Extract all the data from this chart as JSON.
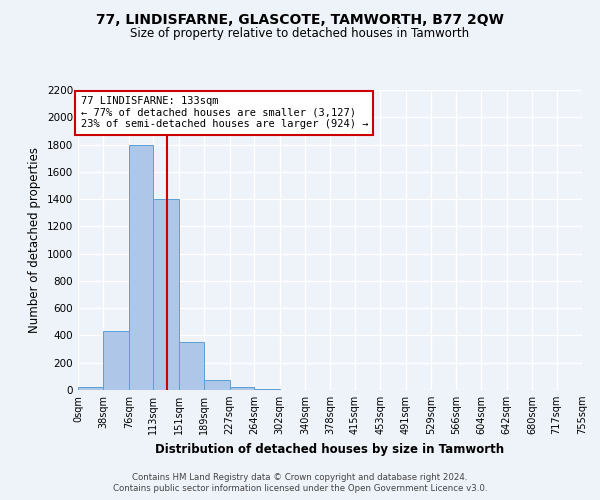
{
  "title": "77, LINDISFARNE, GLASCOTE, TAMWORTH, B77 2QW",
  "subtitle": "Size of property relative to detached houses in Tamworth",
  "xlabel": "Distribution of detached houses by size in Tamworth",
  "ylabel": "Number of detached properties",
  "bar_color": "#aec6e8",
  "bar_edge_color": "#5a9fd4",
  "bin_edges": [
    0,
    38,
    76,
    113,
    151,
    189,
    227,
    264,
    302,
    340,
    378,
    415,
    453,
    491,
    529,
    566,
    604,
    642,
    680,
    717,
    755
  ],
  "bar_heights": [
    20,
    430,
    1800,
    1400,
    350,
    75,
    25,
    5,
    0,
    0,
    0,
    0,
    0,
    0,
    0,
    0,
    0,
    0,
    0,
    0
  ],
  "x_tick_labels": [
    "0sqm",
    "38sqm",
    "76sqm",
    "113sqm",
    "151sqm",
    "189sqm",
    "227sqm",
    "264sqm",
    "302sqm",
    "340sqm",
    "378sqm",
    "415sqm",
    "453sqm",
    "491sqm",
    "529sqm",
    "566sqm",
    "604sqm",
    "642sqm",
    "680sqm",
    "717sqm",
    "755sqm"
  ],
  "ylim": [
    0,
    2200
  ],
  "yticks": [
    0,
    200,
    400,
    600,
    800,
    1000,
    1200,
    1400,
    1600,
    1800,
    2000,
    2200
  ],
  "vline_x": 133,
  "vline_color": "#cc0000",
  "annotation_title": "77 LINDISFARNE: 133sqm",
  "annotation_line1": "← 77% of detached houses are smaller (3,127)",
  "annotation_line2": "23% of semi-detached houses are larger (924) →",
  "annotation_box_color": "#ffffff",
  "annotation_box_edge_color": "#cc0000",
  "footer_line1": "Contains HM Land Registry data © Crown copyright and database right 2024.",
  "footer_line2": "Contains public sector information licensed under the Open Government Licence v3.0.",
  "background_color": "#eef2f9",
  "grid_color": "#ffffff"
}
